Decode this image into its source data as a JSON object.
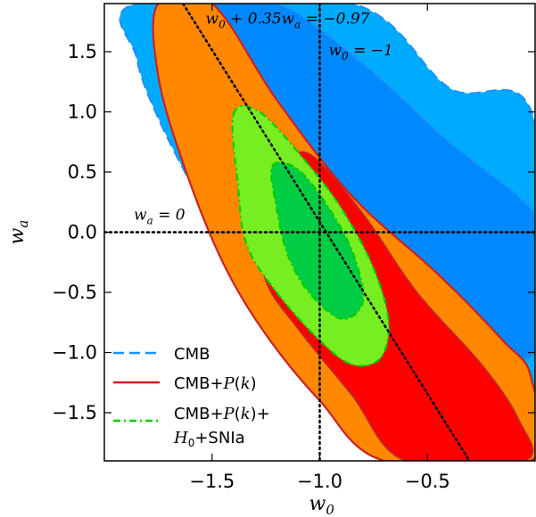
{
  "chart_data": {
    "type": "contour",
    "xlabel_main": "w",
    "xlabel_sub": "0",
    "ylabel_main": "w",
    "ylabel_sub": "a",
    "xlim": [
      -2.0,
      0.0
    ],
    "ylim": [
      -1.9,
      1.9
    ],
    "xticks": [
      -1.5,
      -1.0,
      -0.5
    ],
    "xtick_labels": [
      "−1.5",
      "−1.0",
      "−0.5"
    ],
    "yticks": [
      -1.5,
      -1.0,
      -0.5,
      0.0,
      0.5,
      1.0,
      1.5
    ],
    "ytick_labels": [
      "−1.5",
      "−1.0",
      "−0.5",
      "0.0",
      "0.5",
      "1.0",
      "1.5"
    ],
    "reference_lines": [
      {
        "label": "w0 = −1",
        "text_parts": [
          "w",
          "0",
          " = −1"
        ],
        "type": "vertical",
        "x": -1.0
      },
      {
        "label": "wa = 0",
        "text_parts": [
          "w",
          "a",
          " = 0"
        ],
        "type": "horizontal",
        "y": 0.0
      },
      {
        "label": "w0 + 0.35wa = −0.97",
        "text_parts": [
          "w",
          "0",
          " + 0.35",
          "w",
          "a",
          " = −0.97"
        ],
        "type": "line",
        "a": 0.35,
        "c": -0.97
      }
    ],
    "series": [
      {
        "name": "CMB",
        "line_style": "dashed",
        "color_line": "#1e90ff",
        "color_outer": "#00aaff",
        "color_inner": "#0088ff",
        "contour_95": [
          [
            -1.85,
            1.9
          ],
          [
            -0.85,
            1.9
          ],
          [
            -0.4,
            1.2
          ],
          [
            0.0,
            0.9
          ],
          [
            0.0,
            -1.9
          ],
          [
            -0.3,
            -1.9
          ],
          [
            -0.55,
            -1.85
          ],
          [
            -0.8,
            -1.5
          ],
          [
            -1.05,
            -1.05
          ],
          [
            -1.3,
            -0.5
          ],
          [
            -1.55,
            0.25
          ],
          [
            -1.75,
            0.95
          ],
          [
            -1.85,
            1.45
          ]
        ],
        "contour_68": [
          [
            -1.6,
            1.9
          ],
          [
            -1.2,
            1.9
          ],
          [
            -0.8,
            1.4
          ],
          [
            -0.4,
            0.75
          ],
          [
            -0.05,
            0.25
          ],
          [
            0.0,
            0.0
          ],
          [
            0.0,
            -1.0
          ],
          [
            -0.3,
            -0.85
          ],
          [
            -0.6,
            -0.35
          ],
          [
            -0.9,
            0.2
          ],
          [
            -1.2,
            0.85
          ],
          [
            -1.45,
            1.5
          ]
        ]
      },
      {
        "name": "CMB+P(k)",
        "line_style": "solid",
        "color_line": "#cc2020",
        "color_outer": "#ff8800",
        "color_inner": "#ff0000",
        "contour_95": [
          [
            -1.75,
            1.9
          ],
          [
            -1.5,
            1.9
          ],
          [
            -1.2,
            1.1
          ],
          [
            -0.85,
            0.3
          ],
          [
            -0.45,
            -0.35
          ],
          [
            -0.15,
            -0.9
          ],
          [
            -0.02,
            -1.2
          ],
          [
            -0.02,
            -1.9
          ],
          [
            -0.7,
            -1.9
          ],
          [
            -1.0,
            -1.4
          ],
          [
            -1.25,
            -0.85
          ],
          [
            -1.45,
            -0.25
          ],
          [
            -1.63,
            0.55
          ],
          [
            -1.75,
            1.3
          ]
        ],
        "contour_68": [
          [
            -1.05,
            0.65
          ],
          [
            -0.8,
            0.15
          ],
          [
            -0.55,
            -0.5
          ],
          [
            -0.25,
            -1.1
          ],
          [
            -0.08,
            -1.55
          ],
          [
            -0.05,
            -1.9
          ],
          [
            -0.6,
            -1.9
          ],
          [
            -0.85,
            -1.35
          ],
          [
            -1.1,
            -0.8
          ],
          [
            -1.25,
            -0.4
          ],
          [
            -1.28,
            0.1
          ],
          [
            -1.18,
            0.5
          ]
        ]
      },
      {
        "name": "CMB+P(k)+ H0+SNIa",
        "legend_lines": [
          "CMB+P(k)+",
          "H0+SNIa"
        ],
        "line_style": "dashdot",
        "color_line": "#00cc00",
        "color_outer": "#77ee22",
        "color_inner": "#00cc44",
        "contour_95": [
          [
            -1.4,
            0.98
          ],
          [
            -1.28,
            1.0
          ],
          [
            -1.08,
            0.62
          ],
          [
            -0.9,
            0.2
          ],
          [
            -0.75,
            -0.3
          ],
          [
            -0.68,
            -0.75
          ],
          [
            -0.72,
            -1.05
          ],
          [
            -0.85,
            -1.1
          ],
          [
            -1.0,
            -0.9
          ],
          [
            -1.2,
            -0.5
          ],
          [
            -1.34,
            -0.1
          ],
          [
            -1.38,
            0.4
          ]
        ],
        "contour_68": [
          [
            -1.22,
            0.55
          ],
          [
            -1.1,
            0.52
          ],
          [
            -0.95,
            0.18
          ],
          [
            -0.84,
            -0.2
          ],
          [
            -0.8,
            -0.58
          ],
          [
            -0.9,
            -0.72
          ],
          [
            -1.05,
            -0.5
          ],
          [
            -1.15,
            -0.18
          ],
          [
            -1.2,
            0.2
          ]
        ]
      }
    ],
    "legend_position": "lower-left"
  }
}
